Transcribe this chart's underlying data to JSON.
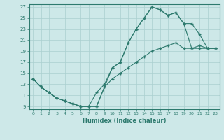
{
  "title": "",
  "xlabel": "Humidex (Indice chaleur)",
  "xlim": [
    -0.5,
    23.5
  ],
  "ylim": [
    8.5,
    27.5
  ],
  "xticks": [
    0,
    1,
    2,
    3,
    4,
    5,
    6,
    7,
    8,
    9,
    10,
    11,
    12,
    13,
    14,
    15,
    16,
    17,
    18,
    19,
    20,
    21,
    22,
    23
  ],
  "yticks": [
    9,
    11,
    13,
    15,
    17,
    19,
    21,
    23,
    25,
    27
  ],
  "bg_color": "#cde8e8",
  "line_color": "#2d7a6e",
  "grid_color": "#aacfcf",
  "line1_x": [
    0,
    1,
    2,
    3,
    4,
    5,
    6,
    7,
    8,
    9,
    10,
    11,
    12,
    13,
    14,
    15,
    16,
    17,
    18,
    19,
    20,
    21,
    22,
    23
  ],
  "line1_y": [
    14,
    12.5,
    11.5,
    10.5,
    10,
    9.5,
    9,
    9,
    9,
    12.5,
    16,
    17,
    20.5,
    23,
    25,
    27,
    26.5,
    25.5,
    26,
    24,
    19.5,
    20,
    19.5,
    19.5
  ],
  "line2_x": [
    0,
    1,
    2,
    3,
    4,
    5,
    6,
    7,
    8,
    9,
    10,
    11,
    12,
    13,
    14,
    15,
    16,
    17,
    18,
    19,
    20,
    21,
    22,
    23
  ],
  "line2_y": [
    14,
    12.5,
    11.5,
    10.5,
    10,
    9.5,
    9,
    9,
    11.5,
    13,
    16,
    17,
    20.5,
    23,
    25,
    27,
    26.5,
    25.5,
    26,
    24,
    24,
    22,
    19.5,
    19.5
  ],
  "line3_x": [
    0,
    1,
    2,
    3,
    4,
    5,
    6,
    7,
    8,
    9,
    10,
    11,
    12,
    13,
    14,
    15,
    16,
    17,
    18,
    19,
    20,
    21,
    22,
    23
  ],
  "line3_y": [
    14,
    12.5,
    11.5,
    10.5,
    10,
    9.5,
    9,
    9,
    9,
    12.5,
    14,
    15,
    16,
    17,
    18,
    19,
    19.5,
    20,
    20.5,
    19.5,
    19.5,
    19.5,
    19.5,
    19.5
  ]
}
